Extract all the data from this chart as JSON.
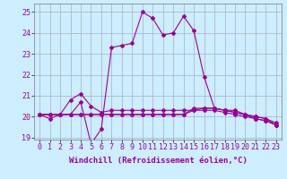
{
  "xlabel": "Windchill (Refroidissement éolien,°C)",
  "bg_color": "#cceeff",
  "line_color": "#990099",
  "grid_color": "#aaaacc",
  "x": [
    0,
    1,
    2,
    3,
    4,
    5,
    6,
    7,
    8,
    9,
    10,
    11,
    12,
    13,
    14,
    15,
    16,
    17,
    18,
    19,
    20,
    21,
    22,
    23
  ],
  "line1": [
    20.1,
    19.9,
    20.1,
    20.1,
    20.7,
    18.7,
    19.4,
    23.3,
    23.4,
    23.5,
    25.0,
    24.7,
    23.9,
    24.0,
    24.8,
    24.1,
    21.9,
    20.4,
    20.3,
    20.3,
    20.1,
    19.9,
    19.8,
    19.6
  ],
  "line2": [
    20.1,
    20.1,
    20.1,
    20.8,
    21.1,
    20.5,
    20.2,
    20.3,
    20.3,
    20.3,
    20.3,
    20.3,
    20.3,
    20.3,
    20.3,
    20.3,
    20.4,
    20.4,
    20.3,
    20.2,
    20.1,
    20.0,
    19.9,
    19.7
  ],
  "line3": [
    20.1,
    20.1,
    20.1,
    20.1,
    20.1,
    20.1,
    20.1,
    20.1,
    20.1,
    20.1,
    20.1,
    20.1,
    20.1,
    20.1,
    20.1,
    20.3,
    20.3,
    20.3,
    20.2,
    20.1,
    20.0,
    19.9,
    19.8,
    19.6
  ],
  "line4": [
    20.1,
    20.1,
    20.1,
    20.1,
    20.1,
    20.1,
    20.1,
    20.1,
    20.1,
    20.1,
    20.1,
    20.1,
    20.1,
    20.1,
    20.1,
    20.4,
    20.4,
    20.4,
    20.3,
    20.2,
    20.1,
    20.0,
    19.9,
    19.6
  ],
  "ylim": [
    18.9,
    25.4
  ],
  "yticks": [
    19,
    20,
    21,
    22,
    23,
    24,
    25
  ],
  "xticks": [
    0,
    1,
    2,
    3,
    4,
    5,
    6,
    7,
    8,
    9,
    10,
    11,
    12,
    13,
    14,
    15,
    16,
    17,
    18,
    19,
    20,
    21,
    22,
    23
  ],
  "marker": "D",
  "markersize": 2.0,
  "linewidth": 0.8,
  "xlabel_fontsize": 6.5,
  "tick_fontsize": 6.0
}
